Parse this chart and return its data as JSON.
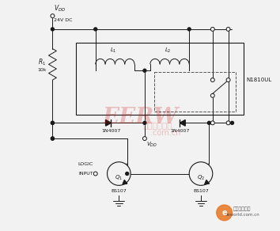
{
  "bg_color": "#f2f2f2",
  "vdd_label1": "V",
  "vdd_label2": "DD",
  "vdd_label3": "24V DC",
  "r1_label1": "R",
  "r1_label2": "1",
  "r1_label3": "10k",
  "diode1_label": "1N4007",
  "diode2_label": "1N4007",
  "vdd2_label1": "V",
  "vdd2_label2": "DD",
  "relay_label": "N1810UL",
  "l1_label1": "L",
  "l1_label2": "1",
  "l2_label1": "L",
  "l2_label2": "2",
  "q1_label1": "Q",
  "q1_label2": "1",
  "q2_label1": "Q",
  "q2_label2": "2",
  "bs107_label": "BS107",
  "logic1": "LOGIC",
  "logic2": "INPUT",
  "line_color": "#1a1a1a",
  "wm_color_r": "#cc0000",
  "wm_alpha": 0.22,
  "eeworld_color": "#333333"
}
